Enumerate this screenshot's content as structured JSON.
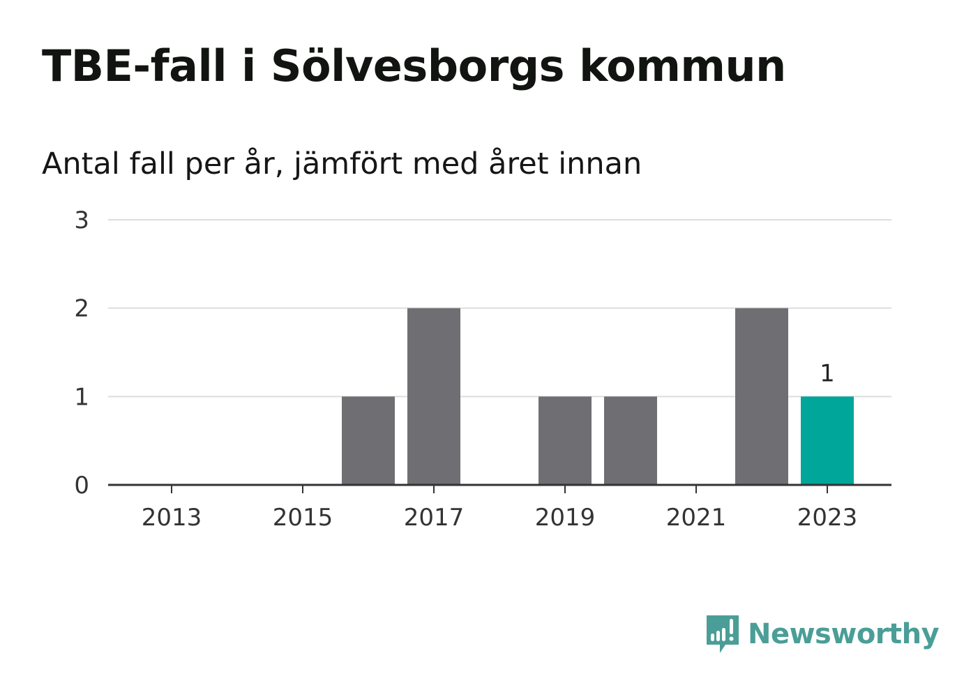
{
  "title": "TBE-fall i Sölvesborgs kommun",
  "subtitle": "Antal fall per år, jämfört med året innan",
  "brand": {
    "name": "Newsworthy",
    "color": "#4a9e97"
  },
  "colors": {
    "bar": "#6f6e73",
    "highlight": "#00a699",
    "grid": "#dddddd",
    "axis": "#333333"
  },
  "chart_data": {
    "type": "bar",
    "x": [
      2013,
      2014,
      2015,
      2016,
      2017,
      2018,
      2019,
      2020,
      2021,
      2022,
      2023
    ],
    "values": [
      0,
      0,
      0,
      1,
      2,
      0,
      1,
      1,
      0,
      2,
      1
    ],
    "highlight_x": 2023,
    "x_tick_labels": [
      "2013",
      "2015",
      "2017",
      "2019",
      "2021",
      "2023"
    ],
    "y_ticks": [
      0,
      1,
      2,
      3
    ],
    "ylim": [
      0,
      3
    ],
    "grid": true,
    "data_labels": [
      {
        "x": 2023,
        "text": "1"
      }
    ],
    "xlabel": "",
    "ylabel": ""
  }
}
